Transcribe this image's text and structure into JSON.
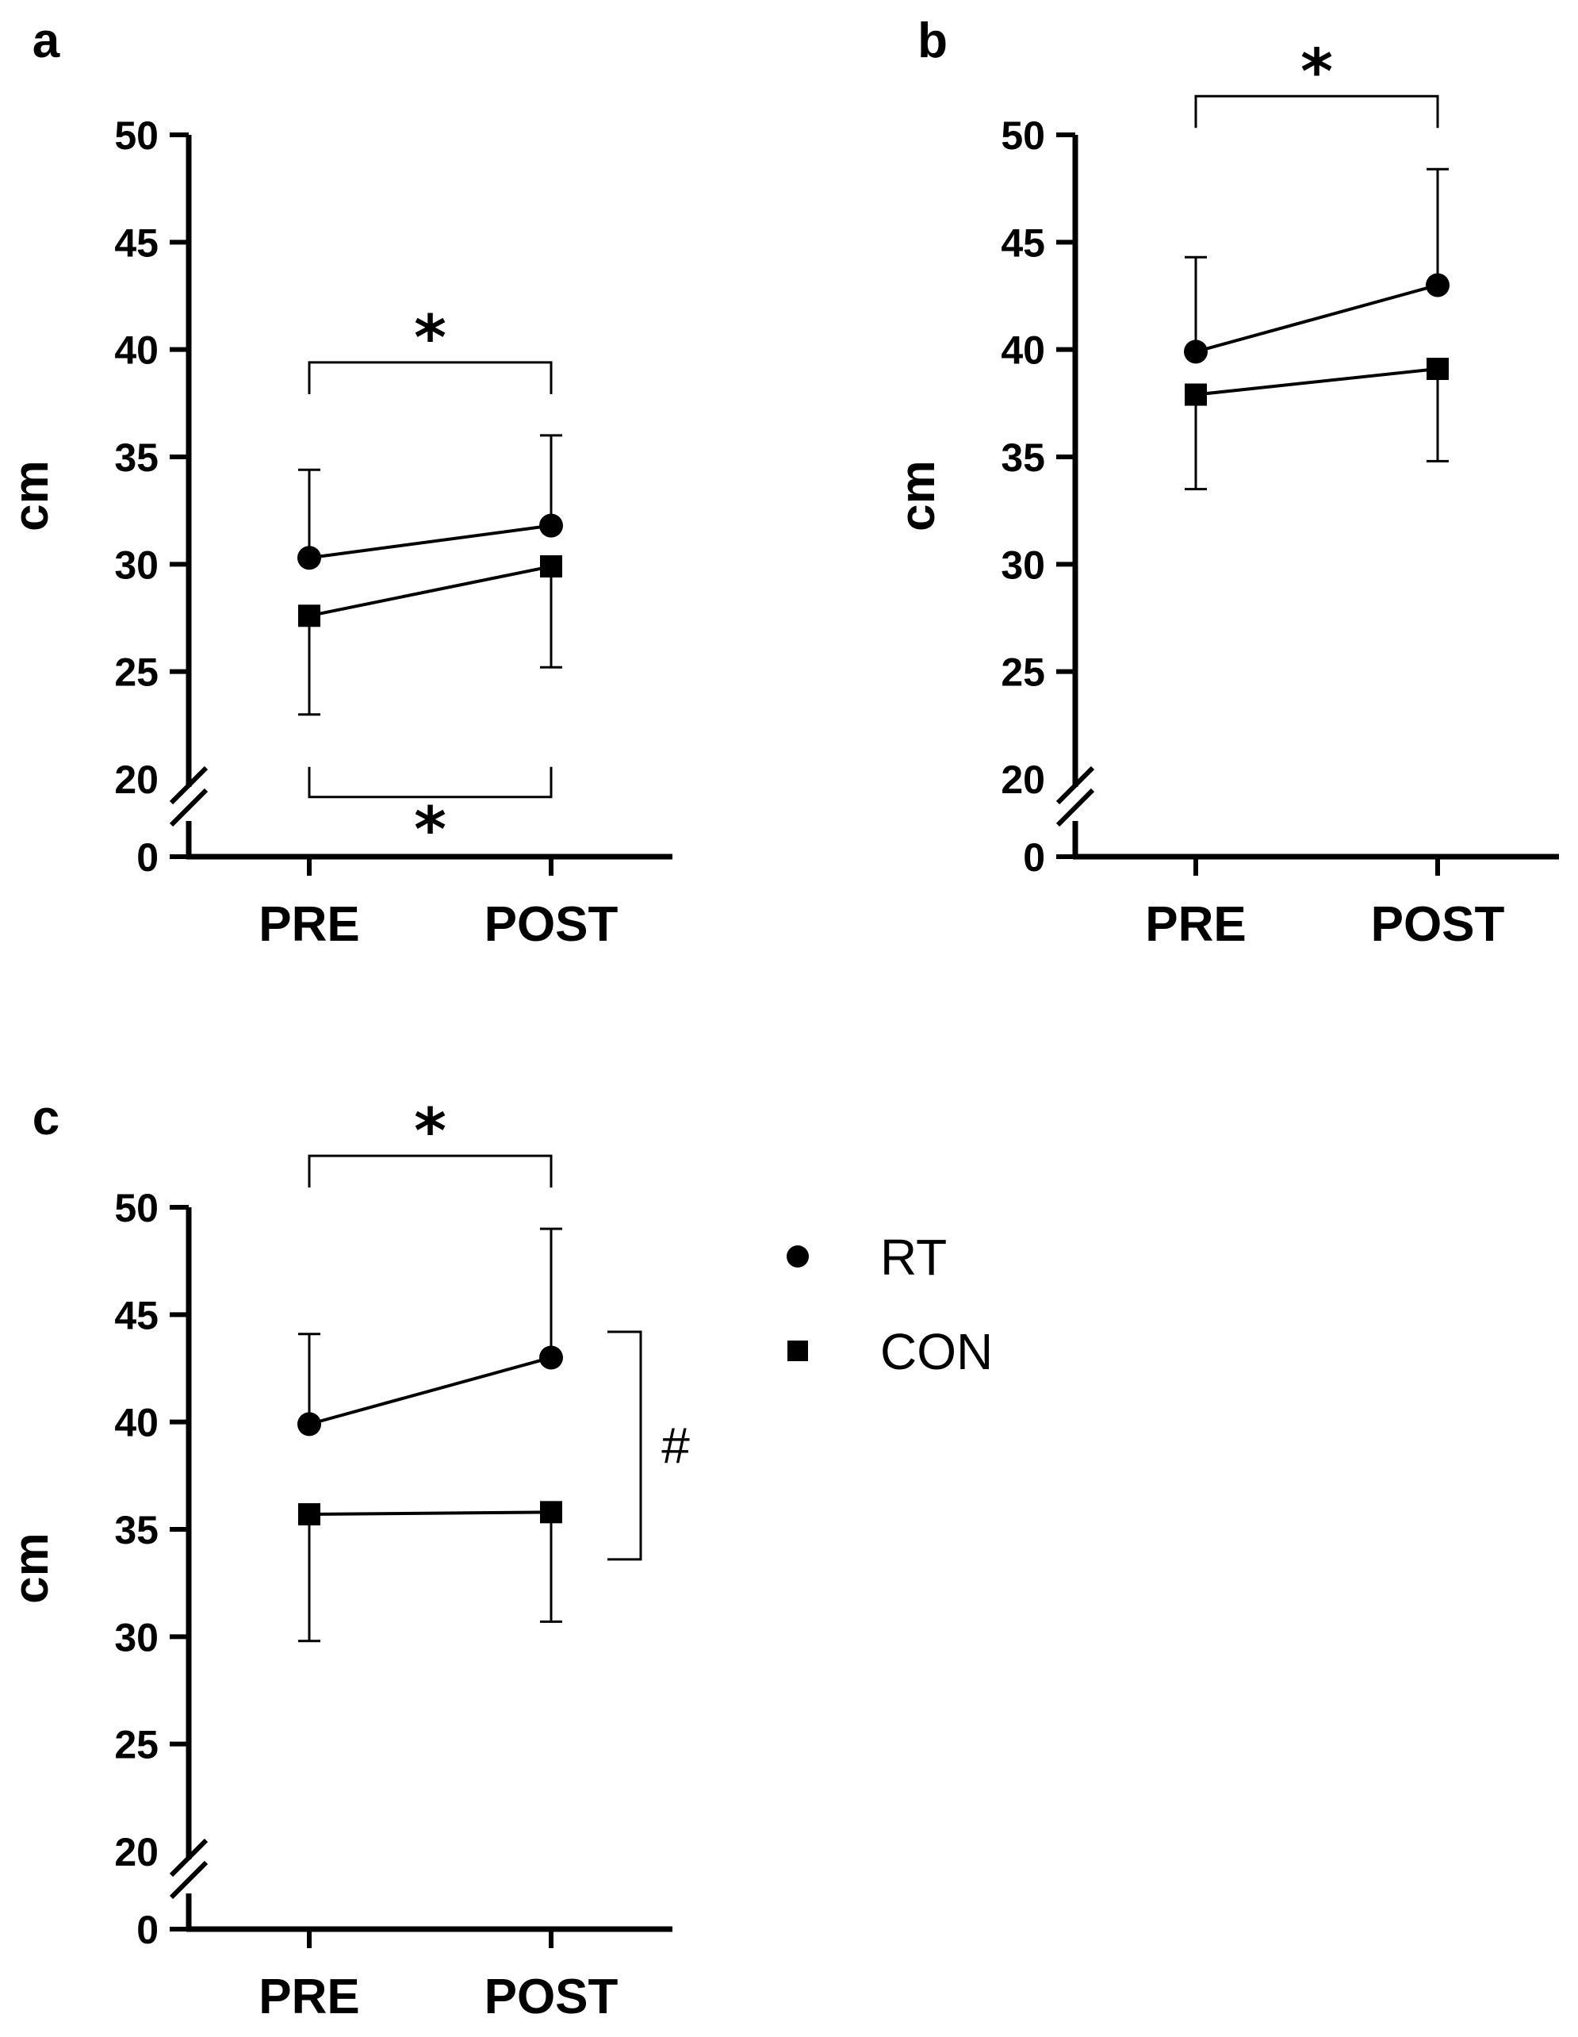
{
  "chart_data": [
    {
      "panel": "a",
      "type": "line",
      "ylabel": "cm",
      "categories": [
        "PRE",
        "POST"
      ],
      "y_ticks": [
        0,
        20,
        25,
        30,
        35,
        40,
        45,
        50
      ],
      "y_break": "0-20",
      "ylim": [
        20,
        50
      ],
      "series": [
        {
          "name": "RT",
          "marker": "circle",
          "values": [
            30.3,
            31.8
          ],
          "err_upper": [
            34.4,
            36.0
          ]
        },
        {
          "name": "CON",
          "marker": "square",
          "values": [
            27.6,
            29.9
          ],
          "err_lower": [
            23.0,
            25.2
          ]
        }
      ],
      "annotations": [
        {
          "type": "bracket",
          "text": "*",
          "series": "RT",
          "between": [
            "PRE",
            "POST"
          ],
          "position": "above"
        },
        {
          "type": "bracket",
          "text": "*",
          "series": "CON",
          "between": [
            "PRE",
            "POST"
          ],
          "position": "below"
        }
      ]
    },
    {
      "panel": "b",
      "type": "line",
      "ylabel": "cm",
      "categories": [
        "PRE",
        "POST"
      ],
      "y_ticks": [
        0,
        20,
        25,
        30,
        35,
        40,
        45,
        50
      ],
      "y_break": "0-20",
      "ylim": [
        20,
        50
      ],
      "series": [
        {
          "name": "RT",
          "marker": "circle",
          "values": [
            39.9,
            43.0
          ],
          "err_upper": [
            44.3,
            48.4
          ]
        },
        {
          "name": "CON",
          "marker": "square",
          "values": [
            37.9,
            39.1
          ],
          "err_lower": [
            33.5,
            34.8
          ]
        }
      ],
      "annotations": [
        {
          "type": "bracket",
          "text": "*",
          "series": "RT",
          "between": [
            "PRE",
            "POST"
          ],
          "position": "above"
        }
      ]
    },
    {
      "panel": "c",
      "type": "line",
      "ylabel": "cm",
      "categories": [
        "PRE",
        "POST"
      ],
      "y_ticks": [
        0,
        20,
        25,
        30,
        35,
        40,
        45,
        50
      ],
      "y_break": "0-20",
      "ylim": [
        20,
        50
      ],
      "series": [
        {
          "name": "RT",
          "marker": "circle",
          "values": [
            39.9,
            43.0
          ],
          "err_upper": [
            44.1,
            49.0
          ]
        },
        {
          "name": "CON",
          "marker": "square",
          "values": [
            35.7,
            35.8
          ],
          "err_lower": [
            29.8,
            30.7
          ]
        }
      ],
      "annotations": [
        {
          "type": "bracket",
          "text": "*",
          "series": "RT",
          "between": [
            "PRE",
            "POST"
          ],
          "position": "above"
        },
        {
          "type": "vertical-bracket",
          "text": "#",
          "range": [
            33.6,
            44.2
          ],
          "position": "right"
        }
      ]
    }
  ],
  "legend": {
    "placement": "right of panel c",
    "items": [
      {
        "label": "RT",
        "marker": "circle"
      },
      {
        "label": "CON",
        "marker": "square"
      }
    ]
  },
  "colors": {
    "ink": "#000000",
    "background": "#ffffff"
  }
}
